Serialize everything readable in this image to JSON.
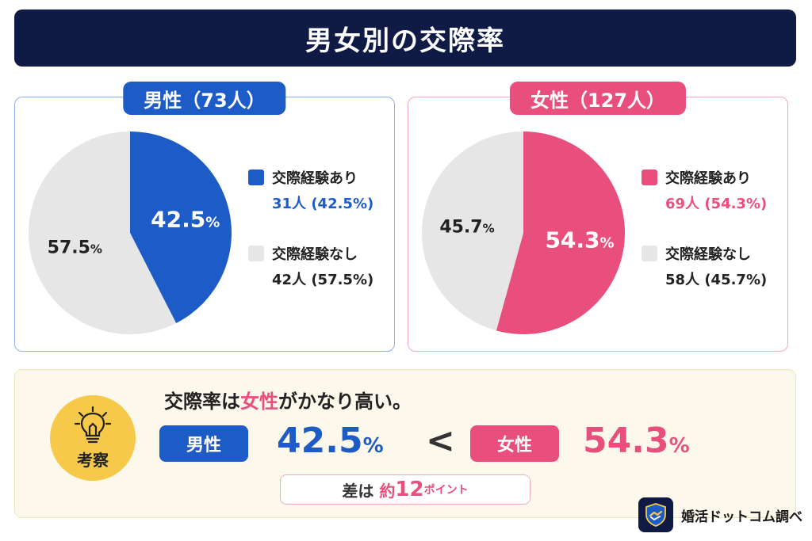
{
  "title": "男女別の交際率",
  "chart_data": [
    {
      "type": "pie",
      "title": "男性（73人）",
      "slices": [
        {
          "label": "交際経験あり",
          "value": 42.5,
          "count": 31,
          "color": "#1d5bc6"
        },
        {
          "label": "交際経験なし",
          "value": 57.5,
          "count": 42,
          "color": "#e6e6e6"
        }
      ],
      "slice_labels": [
        "42.5",
        "57.5"
      ],
      "legend": [
        {
          "label": "交際経験あり",
          "value": "31人 (42.5%)"
        },
        {
          "label": "交際経験なし",
          "value": "42人 (57.5%)"
        }
      ]
    },
    {
      "type": "pie",
      "title": "女性（127人）",
      "slices": [
        {
          "label": "交際経験あり",
          "value": 54.3,
          "count": 69,
          "color": "#e94f7d"
        },
        {
          "label": "交際経験なし",
          "value": 45.7,
          "count": 58,
          "color": "#e6e6e6"
        }
      ],
      "slice_labels": [
        "54.3",
        "45.7"
      ],
      "legend": [
        {
          "label": "交際経験あり",
          "value": "69人 (54.3%)"
        },
        {
          "label": "交際経験なし",
          "value": "58人 (45.7%)"
        }
      ]
    }
  ],
  "summary": {
    "icon": "lightbulb-icon",
    "badge": "考察",
    "text_pre": "交際率は",
    "text_hl": "女性",
    "text_post": "がかなり高い。",
    "male_label": "男性",
    "male_value": "42.5",
    "lt": "<",
    "female_label": "女性",
    "female_value": "54.3",
    "pct": "%",
    "diff_pre": "差は",
    "diff_hl": "約",
    "diff_num": "12",
    "diff_unit": "ポイント"
  },
  "brand": {
    "name": "婚活ドットコム調べ",
    "icon": "handshake-shield-icon"
  },
  "colors": {
    "navy": "#0f1b45",
    "blue": "#1d5bc6",
    "pink": "#e94f7d",
    "gray": "#e6e6e6"
  }
}
